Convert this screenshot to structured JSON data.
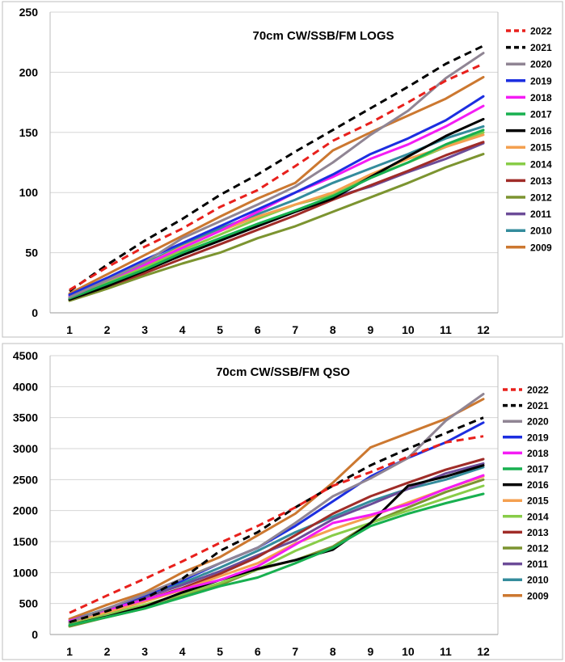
{
  "chart_data": [
    {
      "type": "line",
      "title": "70cm CW/SSB/FM LOGS",
      "xlabel": "",
      "ylabel": "",
      "x": [
        1,
        2,
        3,
        4,
        5,
        6,
        7,
        8,
        9,
        10,
        11,
        12
      ],
      "ylim": [
        0,
        250
      ],
      "yticks": [
        0,
        50,
        100,
        150,
        200,
        250
      ],
      "grid": "horizontal",
      "legend_position": "right",
      "series": [
        {
          "name": "2022",
          "color": "#e8201c",
          "dash": "dash",
          "values": [
            19,
            38,
            55,
            70,
            88,
            102,
            122,
            143,
            158,
            175,
            193,
            207
          ]
        },
        {
          "name": "2021",
          "color": "#000000",
          "dash": "dash",
          "values": [
            18,
            40,
            60,
            78,
            98,
            115,
            134,
            152,
            170,
            188,
            207,
            222
          ]
        },
        {
          "name": "2020",
          "color": "#908594",
          "dash": "solid",
          "values": [
            13,
            27,
            42,
            62,
            76,
            90,
            105,
            125,
            148,
            168,
            195,
            216
          ]
        },
        {
          "name": "2019",
          "color": "#1c2ee0",
          "dash": "solid",
          "values": [
            15,
            29,
            44,
            58,
            72,
            86,
            100,
            115,
            132,
            145,
            160,
            180
          ]
        },
        {
          "name": "2018",
          "color": "#f41cf4",
          "dash": "solid",
          "values": [
            14,
            27,
            40,
            54,
            68,
            84,
            100,
            113,
            128,
            140,
            155,
            172
          ]
        },
        {
          "name": "2017",
          "color": "#18b050",
          "dash": "solid",
          "values": [
            12,
            24,
            36,
            50,
            62,
            74,
            85,
            97,
            112,
            125,
            140,
            152
          ]
        },
        {
          "name": "2016",
          "color": "#000000",
          "dash": "solid",
          "values": [
            11,
            22,
            35,
            48,
            60,
            72,
            84,
            95,
            113,
            130,
            147,
            161
          ]
        },
        {
          "name": "2015",
          "color": "#f4a050",
          "dash": "solid",
          "values": [
            13,
            27,
            40,
            55,
            68,
            80,
            90,
            100,
            115,
            128,
            138,
            148
          ]
        },
        {
          "name": "2014",
          "color": "#88cc48",
          "dash": "solid",
          "values": [
            12,
            25,
            38,
            52,
            65,
            78,
            90,
            98,
            113,
            125,
            138,
            150
          ]
        },
        {
          "name": "2013",
          "color": "#a02c28",
          "dash": "solid",
          "values": [
            11,
            22,
            33,
            45,
            57,
            69,
            81,
            94,
            106,
            118,
            131,
            142
          ]
        },
        {
          "name": "2012",
          "color": "#7c9430",
          "dash": "solid",
          "values": [
            10,
            20,
            31,
            41,
            50,
            62,
            72,
            84,
            96,
            108,
            121,
            132
          ]
        },
        {
          "name": "2011",
          "color": "#6c4c98",
          "dash": "solid",
          "values": [
            12,
            24,
            36,
            48,
            60,
            72,
            84,
            96,
            105,
            117,
            128,
            141
          ]
        },
        {
          "name": "2010",
          "color": "#348c9c",
          "dash": "solid",
          "values": [
            14,
            28,
            41,
            56,
            70,
            82,
            94,
            108,
            120,
            132,
            145,
            155
          ]
        },
        {
          "name": "2009",
          "color": "#cc7830",
          "dash": "solid",
          "values": [
            16,
            32,
            48,
            64,
            80,
            95,
            108,
            135,
            150,
            164,
            178,
            196
          ]
        }
      ]
    },
    {
      "type": "line",
      "title": "70cm CW/SSB/FM QSO",
      "xlabel": "",
      "ylabel": "",
      "x": [
        1,
        2,
        3,
        4,
        5,
        6,
        7,
        8,
        9,
        10,
        11,
        12
      ],
      "ylim": [
        0,
        4500
      ],
      "yticks": [
        0,
        500,
        1000,
        1500,
        2000,
        2500,
        3000,
        3500,
        4000,
        4500
      ],
      "grid": "horizontal",
      "legend_position": "right",
      "series": [
        {
          "name": "2022",
          "color": "#e8201c",
          "dash": "dash",
          "values": [
            350,
            630,
            900,
            1180,
            1480,
            1750,
            2050,
            2400,
            2620,
            2870,
            3100,
            3200
          ]
        },
        {
          "name": "2021",
          "color": "#000000",
          "dash": "dash",
          "values": [
            200,
            380,
            580,
            900,
            1350,
            1650,
            2050,
            2400,
            2730,
            3000,
            3250,
            3500
          ]
        },
        {
          "name": "2020",
          "color": "#908594",
          "dash": "solid",
          "values": [
            200,
            420,
            650,
            900,
            1150,
            1400,
            1800,
            2230,
            2520,
            2850,
            3450,
            3880
          ]
        },
        {
          "name": "2019",
          "color": "#1c2ee0",
          "dash": "solid",
          "values": [
            200,
            420,
            630,
            870,
            1150,
            1400,
            1750,
            2150,
            2550,
            2850,
            3100,
            3420
          ]
        },
        {
          "name": "2018",
          "color": "#f41cf4",
          "dash": "solid",
          "values": [
            220,
            400,
            560,
            730,
            880,
            1100,
            1450,
            1800,
            1930,
            2100,
            2350,
            2570
          ]
        },
        {
          "name": "2017",
          "color": "#18b050",
          "dash": "solid",
          "values": [
            150,
            280,
            420,
            600,
            780,
            920,
            1150,
            1400,
            1750,
            1950,
            2120,
            2270
          ]
        },
        {
          "name": "2016",
          "color": "#000000",
          "dash": "solid",
          "values": [
            150,
            290,
            450,
            680,
            880,
            1060,
            1200,
            1370,
            1800,
            2400,
            2550,
            2730
          ]
        },
        {
          "name": "2015",
          "color": "#f4a050",
          "dash": "solid",
          "values": [
            200,
            360,
            530,
            720,
            940,
            1150,
            1470,
            1700,
            1900,
            2130,
            2350,
            2550
          ]
        },
        {
          "name": "2014",
          "color": "#88cc48",
          "dash": "solid",
          "values": [
            180,
            330,
            480,
            650,
            830,
            1050,
            1350,
            1600,
            1800,
            2000,
            2200,
            2400
          ]
        },
        {
          "name": "2013",
          "color": "#a02c28",
          "dash": "solid",
          "values": [
            200,
            380,
            560,
            750,
            980,
            1250,
            1600,
            1950,
            2230,
            2450,
            2660,
            2830
          ]
        },
        {
          "name": "2012",
          "color": "#7c9430",
          "dash": "solid",
          "values": [
            130,
            280,
            420,
            620,
            800,
            1050,
            1200,
            1420,
            1800,
            2050,
            2300,
            2500
          ]
        },
        {
          "name": "2011",
          "color": "#6c4c98",
          "dash": "solid",
          "values": [
            200,
            400,
            600,
            800,
            1020,
            1280,
            1520,
            1860,
            2100,
            2350,
            2600,
            2760
          ]
        },
        {
          "name": "2010",
          "color": "#348c9c",
          "dash": "solid",
          "values": [
            220,
            420,
            620,
            830,
            1080,
            1350,
            1650,
            1900,
            2150,
            2350,
            2500,
            2700
          ]
        },
        {
          "name": "2009",
          "color": "#cc7830",
          "dash": "solid",
          "values": [
            250,
            480,
            680,
            1000,
            1250,
            1600,
            1950,
            2450,
            3020,
            3250,
            3480,
            3800
          ]
        }
      ]
    }
  ]
}
